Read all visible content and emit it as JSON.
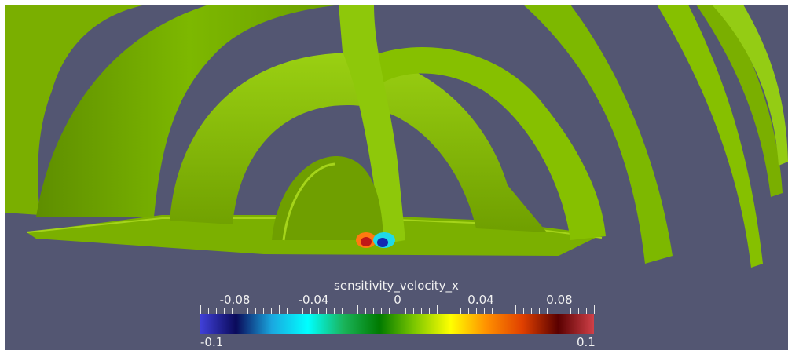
{
  "viewport": {
    "background": "#535672"
  },
  "mesh": {
    "base_color": "#7db800",
    "shade_color": "#5e8e00",
    "highlight_color": "#a7d61c"
  },
  "colorbar": {
    "title": "sensitivity_velocity_x",
    "min_label": "-0.1",
    "max_label": "0.1",
    "range": [
      -0.1,
      0.1
    ],
    "tick_labels": [
      {
        "value": -0.08,
        "text": "-0.08"
      },
      {
        "value": -0.04,
        "text": "-0.04"
      },
      {
        "value": 0,
        "text": "0"
      },
      {
        "value": 0.04,
        "text": "0.04"
      },
      {
        "value": 0.08,
        "text": "0.08"
      }
    ],
    "colors": [
      "#4040d8",
      "#0a0a5a",
      "#1aa8e0",
      "#00ffff",
      "#1ab45a",
      "#007a00",
      "#7ec800",
      "#ffff00",
      "#ff9000",
      "#e04000",
      "#5a0000",
      "#d04048"
    ]
  }
}
